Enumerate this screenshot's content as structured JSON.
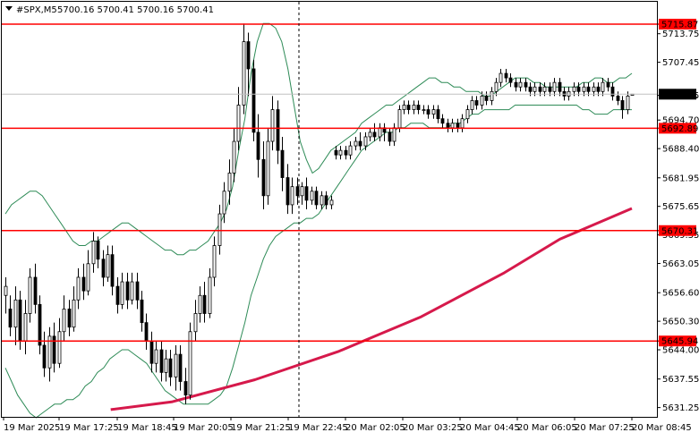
{
  "header": {
    "symbol": "#SPX,M5",
    "ohlc": "5700.16 5700.41 5700.16 5700.41",
    "dropdown_icon": "triangle-down-icon"
  },
  "colors": {
    "background": "#ffffff",
    "frame": "#000000",
    "candle": "#000000",
    "bollinger": "#2e8b57",
    "moving_average": "#d6194b",
    "level_line": "#ff0000",
    "level_label_bg": "#ff0000",
    "price_label_bg": "#000000",
    "price_line": "#c0c0c0"
  },
  "chart_data": {
    "type": "candlestick",
    "ylim": [
      5629.2,
      5720.8
    ],
    "y_ticks": [
      "5713.75",
      "5707.45",
      "5700.15",
      "5694.70",
      "5688.40",
      "5681.95",
      "5675.65",
      "5669.35",
      "5663.05",
      "5656.60",
      "5650.30",
      "5644.00",
      "5637.55",
      "5631.25"
    ],
    "x_ticks": [
      "19 Mar 2025",
      "19 Mar 17:25",
      "19 Mar 18:45",
      "19 Mar 20:05",
      "19 Mar 21:25",
      "19 Mar 22:45",
      "20 Mar 02:05",
      "20 Mar 03:25",
      "20 Mar 04:45",
      "20 Mar 06:05",
      "20 Mar 07:25",
      "20 Mar 08:45"
    ],
    "session_separator_after": "19 Mar 22:45",
    "current_price": "5700.41",
    "levels": [
      {
        "price": 5715.87,
        "label": "5715.87"
      },
      {
        "price": 5692.89,
        "label": "5692.89"
      },
      {
        "price": 5670.31,
        "label": "5670.31"
      },
      {
        "price": 5645.94,
        "label": "5645.94"
      }
    ],
    "candles": [
      [
        5656,
        5658,
        5652,
        5660
      ],
      [
        5653,
        5649,
        5647,
        5656
      ],
      [
        5649,
        5655,
        5645,
        5658
      ],
      [
        5655,
        5646,
        5644,
        5657
      ],
      [
        5646,
        5652,
        5643,
        5655
      ],
      [
        5652,
        5660,
        5650,
        5662
      ],
      [
        5660,
        5654,
        5652,
        5663
      ],
      [
        5654,
        5645,
        5643,
        5656
      ],
      [
        5645,
        5640,
        5638,
        5648
      ],
      [
        5640,
        5647,
        5637,
        5649
      ],
      [
        5647,
        5641,
        5639,
        5650
      ],
      [
        5641,
        5648,
        5640,
        5651
      ],
      [
        5648,
        5653,
        5646,
        5656
      ],
      [
        5653,
        5649,
        5647,
        5655
      ],
      [
        5649,
        5655,
        5648,
        5658
      ],
      [
        5655,
        5660,
        5653,
        5662
      ],
      [
        5660,
        5657,
        5655,
        5663
      ],
      [
        5657,
        5663,
        5656,
        5666
      ],
      [
        5663,
        5668,
        5661,
        5670
      ],
      [
        5668,
        5664,
        5662,
        5669
      ],
      [
        5664,
        5660,
        5658,
        5666
      ],
      [
        5660,
        5665,
        5659,
        5667
      ],
      [
        5665,
        5658,
        5656,
        5667
      ],
      [
        5658,
        5654,
        5652,
        5660
      ],
      [
        5654,
        5659,
        5653,
        5661
      ],
      [
        5659,
        5655,
        5653,
        5661
      ],
      [
        5655,
        5659,
        5654,
        5661
      ],
      [
        5659,
        5655,
        5653,
        5661
      ],
      [
        5655,
        5650,
        5648,
        5657
      ],
      [
        5650,
        5646,
        5644,
        5652
      ],
      [
        5646,
        5641,
        5639,
        5648
      ],
      [
        5641,
        5644,
        5639,
        5646
      ],
      [
        5644,
        5639,
        5637,
        5646
      ],
      [
        5639,
        5642,
        5637,
        5644
      ],
      [
        5642,
        5638,
        5636,
        5644
      ],
      [
        5638,
        5643,
        5635,
        5645
      ],
      [
        5643,
        5637,
        5635,
        5645
      ],
      [
        5637,
        5634,
        5632,
        5640
      ],
      [
        5634,
        5648,
        5633,
        5650
      ],
      [
        5648,
        5652,
        5646,
        5655
      ],
      [
        5652,
        5656,
        5650,
        5658
      ],
      [
        5656,
        5652,
        5650,
        5659
      ],
      [
        5652,
        5660,
        5651,
        5662
      ],
      [
        5660,
        5667,
        5658,
        5669
      ],
      [
        5667,
        5674,
        5665,
        5676
      ],
      [
        5674,
        5679,
        5672,
        5681
      ],
      [
        5679,
        5683,
        5676,
        5686
      ],
      [
        5683,
        5690,
        5681,
        5693
      ],
      [
        5690,
        5698,
        5688,
        5702
      ],
      [
        5698,
        5712,
        5696,
        5716
      ],
      [
        5712,
        5706,
        5700,
        5714
      ],
      [
        5706,
        5692,
        5690,
        5708
      ],
      [
        5692,
        5686,
        5682,
        5696
      ],
      [
        5686,
        5678,
        5675,
        5690
      ],
      [
        5678,
        5690,
        5676,
        5693
      ],
      [
        5690,
        5697,
        5688,
        5700
      ],
      [
        5697,
        5688,
        5685,
        5699
      ],
      [
        5688,
        5682,
        5679,
        5691
      ],
      [
        5682,
        5676,
        5674,
        5685
      ],
      [
        5676,
        5680,
        5674,
        5682
      ],
      [
        5680,
        5678,
        5676,
        5682
      ],
      [
        5678,
        5680,
        5676,
        5681
      ],
      [
        5680,
        5677,
        5675,
        5682
      ],
      [
        5677,
        5679,
        5676,
        5680
      ],
      [
        5679,
        5676,
        5675,
        5680
      ],
      [
        5676,
        5678,
        5675,
        5679
      ],
      [
        5678,
        5676,
        5675,
        5679
      ],
      [
        5676,
        5677,
        5675,
        5678
      ],
      [
        5688,
        5687,
        5686,
        5689
      ],
      [
        5687,
        5688,
        5686,
        5689
      ],
      [
        5688,
        5687,
        5686,
        5689
      ],
      [
        5687,
        5689,
        5686,
        5690
      ],
      [
        5689,
        5690,
        5688,
        5691
      ],
      [
        5690,
        5689,
        5688,
        5692
      ],
      [
        5689,
        5691,
        5688,
        5692
      ],
      [
        5691,
        5692,
        5690,
        5693
      ],
      [
        5692,
        5691,
        5690,
        5694
      ],
      [
        5691,
        5693,
        5690,
        5694
      ],
      [
        5693,
        5692,
        5690,
        5694
      ],
      [
        5692,
        5690,
        5689,
        5693
      ],
      [
        5690,
        5693,
        5689,
        5694
      ],
      [
        5693,
        5697,
        5692,
        5698
      ],
      [
        5697,
        5698,
        5696,
        5699
      ],
      [
        5698,
        5697,
        5696,
        5699
      ],
      [
        5697,
        5698,
        5696,
        5699
      ],
      [
        5698,
        5697,
        5696,
        5699
      ],
      [
        5697,
        5697,
        5696,
        5698
      ],
      [
        5697,
        5696,
        5695,
        5698
      ],
      [
        5696,
        5697,
        5695,
        5698
      ],
      [
        5697,
        5695,
        5694,
        5698
      ],
      [
        5695,
        5694,
        5693,
        5696
      ],
      [
        5694,
        5693,
        5692,
        5695
      ],
      [
        5693,
        5694,
        5692,
        5695
      ],
      [
        5694,
        5693,
        5692,
        5695
      ],
      [
        5693,
        5695,
        5692,
        5696
      ],
      [
        5695,
        5697,
        5694,
        5698
      ],
      [
        5697,
        5699,
        5696,
        5700
      ],
      [
        5699,
        5698,
        5697,
        5700
      ],
      [
        5698,
        5700,
        5697,
        5701
      ],
      [
        5700,
        5699,
        5698,
        5701
      ],
      [
        5699,
        5701,
        5698,
        5702
      ],
      [
        5701,
        5703,
        5700,
        5704
      ],
      [
        5703,
        5705,
        5702,
        5706
      ],
      [
        5705,
        5704,
        5703,
        5706
      ],
      [
        5704,
        5703,
        5702,
        5705
      ],
      [
        5703,
        5702,
        5701,
        5704
      ],
      [
        5702,
        5703,
        5701,
        5704
      ],
      [
        5703,
        5702,
        5701,
        5704
      ],
      [
        5702,
        5701,
        5700,
        5703
      ],
      [
        5701,
        5702,
        5700,
        5703
      ],
      [
        5702,
        5701,
        5700,
        5703
      ],
      [
        5701,
        5702,
        5700,
        5703
      ],
      [
        5702,
        5701,
        5700,
        5703
      ],
      [
        5701,
        5703,
        5700,
        5704
      ],
      [
        5703,
        5701,
        5700,
        5704
      ],
      [
        5701,
        5700,
        5699,
        5702
      ],
      [
        5700,
        5701,
        5699,
        5702
      ],
      [
        5701,
        5702,
        5700,
        5703
      ],
      [
        5702,
        5701,
        5700,
        5703
      ],
      [
        5701,
        5702,
        5700,
        5703
      ],
      [
        5702,
        5701,
        5700,
        5703
      ],
      [
        5701,
        5702,
        5700,
        5703
      ],
      [
        5702,
        5701,
        5700,
        5703
      ],
      [
        5701,
        5703,
        5700,
        5704
      ],
      [
        5703,
        5702,
        5701,
        5704
      ],
      [
        5702,
        5700,
        5699,
        5703
      ],
      [
        5700,
        5699,
        5698,
        5701
      ],
      [
        5699,
        5697,
        5695,
        5700
      ],
      [
        5697,
        5700,
        5696,
        5701
      ],
      [
        5700.16,
        5700.41,
        5700.16,
        5700.41
      ]
    ],
    "bollinger_upper": [
      5674,
      5676,
      5677,
      5678,
      5679,
      5679,
      5678,
      5676,
      5674,
      5672,
      5670,
      5668,
      5667,
      5667,
      5668,
      5668,
      5669,
      5670,
      5671,
      5672,
      5672,
      5671,
      5670,
      5669,
      5668,
      5667,
      5666,
      5666,
      5665,
      5665,
      5666,
      5666,
      5667,
      5668,
      5670,
      5672,
      5675,
      5680,
      5688,
      5695,
      5705,
      5712,
      5716,
      5716,
      5715,
      5712,
      5706,
      5698,
      5690,
      5686,
      5683,
      5684,
      5686,
      5688,
      5689,
      5690,
      5691,
      5692,
      5694,
      5695,
      5696,
      5697,
      5698,
      5698,
      5699,
      5700,
      5701,
      5702,
      5703,
      5704,
      5704,
      5703,
      5703,
      5702,
      5702,
      5701,
      5701,
      5701,
      5700,
      5700,
      5701,
      5702,
      5703,
      5704,
      5704,
      5704,
      5703,
      5703,
      5702,
      5702,
      5702,
      5702,
      5702,
      5702,
      5703,
      5703,
      5704,
      5704,
      5703,
      5703,
      5704,
      5704,
      5705
    ],
    "bollinger_lower": [
      5640,
      5637,
      5634,
      5632,
      5630,
      5629,
      5630,
      5631,
      5632,
      5632,
      5633,
      5633,
      5634,
      5636,
      5637,
      5639,
      5640,
      5642,
      5643,
      5644,
      5644,
      5643,
      5642,
      5641,
      5639,
      5637,
      5635,
      5634,
      5633,
      5632,
      5632,
      5632,
      5632,
      5632,
      5633,
      5634,
      5636,
      5640,
      5645,
      5650,
      5656,
      5660,
      5664,
      5667,
      5669,
      5670,
      5671,
      5672,
      5672,
      5673,
      5673,
      5674,
      5676,
      5678,
      5680,
      5682,
      5684,
      5686,
      5688,
      5689,
      5690,
      5691,
      5692,
      5692,
      5693,
      5693,
      5694,
      5694,
      5694,
      5693,
      5693,
      5693,
      5693,
      5694,
      5694,
      5695,
      5696,
      5696,
      5697,
      5697,
      5697,
      5697,
      5697,
      5698,
      5698,
      5698,
      5698,
      5698,
      5698,
      5698,
      5698,
      5698,
      5698,
      5698,
      5697,
      5697,
      5696,
      5696,
      5696,
      5697,
      5697,
      5697,
      5697
    ],
    "moving_average": [
      [
        0.19,
        5630.8
      ],
      [
        0.3,
        5632.5
      ],
      [
        0.45,
        5637.4
      ],
      [
        0.6,
        5643.6
      ],
      [
        0.75,
        5651.3
      ],
      [
        0.9,
        5661.0
      ],
      [
        1.0,
        5668.4
      ],
      [
        1.13,
        5675.2
      ]
    ]
  }
}
